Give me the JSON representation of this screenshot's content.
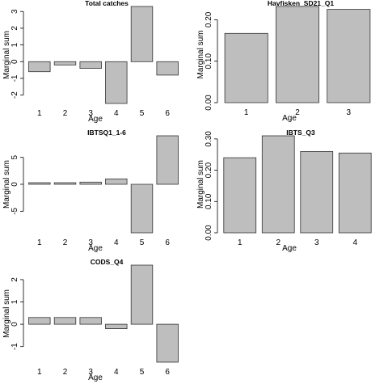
{
  "chart_data": [
    {
      "type": "bar",
      "title": "Total catches",
      "xlabel": "Age",
      "ylabel": "Marginal sum",
      "categories": [
        "1",
        "2",
        "3",
        "4",
        "5",
        "6"
      ],
      "values": [
        -0.6,
        -0.2,
        -0.4,
        -2.5,
        3.3,
        -0.8
      ],
      "ylim": [
        -2.5,
        3.3
      ],
      "yticks": [
        -2,
        -1,
        0,
        1,
        2,
        3
      ],
      "grid": false
    },
    {
      "type": "bar",
      "title": "Havfisken_SD21_Q1",
      "xlabel": "Age",
      "ylabel": "Marginal sum",
      "categories": [
        "1",
        "2",
        "3"
      ],
      "values": [
        0.167,
        0.232,
        0.225
      ],
      "ylim": [
        0,
        0.232
      ],
      "yticks": [
        0,
        0.1,
        0.2
      ],
      "ytick_labels": [
        "0.00",
        "0.10",
        "0.20"
      ],
      "grid": false
    },
    {
      "type": "bar",
      "title": "IBTSQ1_1-6",
      "xlabel": "Age",
      "ylabel": "Marginal sum",
      "categories": [
        "1",
        "2",
        "3",
        "4",
        "5",
        "6"
      ],
      "values": [
        0.3,
        0.3,
        0.4,
        1.0,
        -9.0,
        9.0
      ],
      "ylim": [
        -9.0,
        9.0
      ],
      "yticks": [
        -5,
        0,
        5
      ],
      "grid": false
    },
    {
      "type": "bar",
      "title": "IBTS_Q3",
      "xlabel": "Age",
      "ylabel": "Marginal sum",
      "categories": [
        "1",
        "2",
        "3",
        "4"
      ],
      "values": [
        0.24,
        0.31,
        0.26,
        0.255
      ],
      "ylim": [
        0,
        0.31
      ],
      "yticks": [
        0,
        0.1,
        0.2,
        0.3
      ],
      "ytick_labels": [
        "0.00",
        "0.10",
        "0.20",
        "0.30"
      ],
      "grid": false
    },
    {
      "type": "bar",
      "title": "CODS_Q4",
      "xlabel": "Age",
      "ylabel": "Marginal sum",
      "categories": [
        "1",
        "2",
        "3",
        "4",
        "5",
        "6"
      ],
      "values": [
        0.3,
        0.3,
        0.3,
        -0.2,
        2.65,
        -1.7
      ],
      "ylim": [
        -1.7,
        2.65
      ],
      "yticks": [
        -1,
        0,
        1,
        2
      ],
      "grid": false
    }
  ],
  "colors": {
    "bar_fill": "#bebebe",
    "bar_stroke": "#333333",
    "axis": "#000000"
  }
}
